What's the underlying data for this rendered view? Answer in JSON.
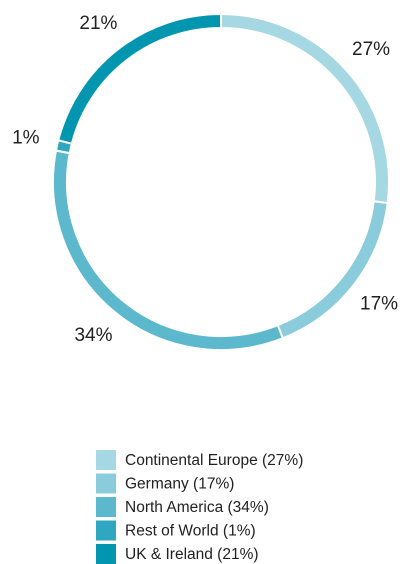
{
  "chart_data": {
    "type": "donut",
    "categories": [
      "Continental Europe (27%)",
      "Germany (17%)",
      "North America (34%)",
      "Rest of World (1%)",
      "UK & Ireland (21%)"
    ],
    "values": [
      27,
      17,
      34,
      1,
      21
    ],
    "value_labels": [
      "27%",
      "17%",
      "34%",
      "1%",
      "21%"
    ],
    "colors": [
      "#a6d8e4",
      "#8accdb",
      "#5bb8cd",
      "#2fa7c0",
      "#0096b0"
    ],
    "legend": "bottom"
  }
}
